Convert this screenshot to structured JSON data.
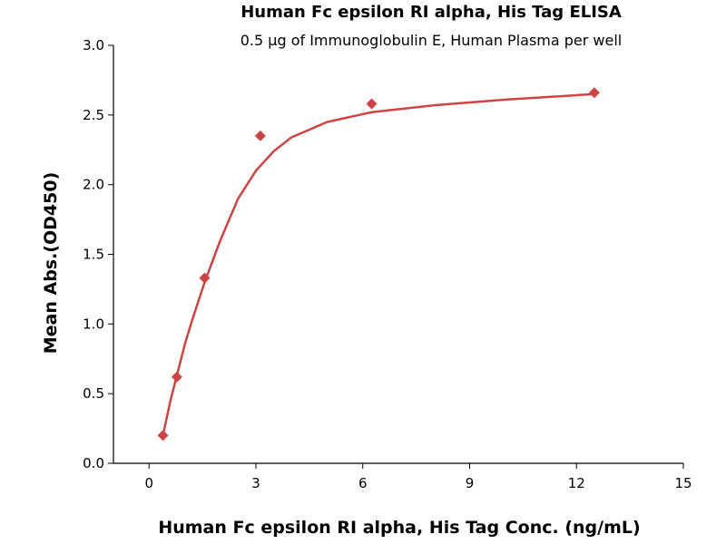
{
  "chart_data": {
    "type": "scatter",
    "title": "Human Fc epsilon RI alpha, His Tag ELISA",
    "subtitle": "0.5 µg of Immunoglobulin E, Human Plasma per well",
    "x_label": "Human Fc epsilon RI alpha, His Tag Conc. (ng/mL)",
    "y_label": "Mean Abs.(OD450)",
    "xlim": [
      -1,
      15
    ],
    "ylim": [
      0,
      3
    ],
    "xticks": [
      0,
      3,
      6,
      9,
      12,
      15
    ],
    "yticks": [
      {
        "value": 0,
        "label": "0.0"
      },
      {
        "value": 0.5,
        "label": "0.5"
      },
      {
        "value": 1,
        "label": "1.0"
      },
      {
        "value": 1.5,
        "label": "1.5"
      },
      {
        "value": 2,
        "label": "2.0"
      },
      {
        "value": 2.5,
        "label": "2.5"
      },
      {
        "value": 3,
        "label": "3.0"
      }
    ],
    "series": [
      {
        "style": "markers",
        "color": "#cc4444",
        "x": [
          0.39,
          0.78,
          1.56,
          3.125,
          6.25,
          12.5
        ],
        "values": [
          0.2,
          0.62,
          1.33,
          2.35,
          2.58,
          2.66
        ]
      },
      {
        "style": "line",
        "color": "#cc4444",
        "x": [
          0.39,
          0.6,
          0.8,
          1.0,
          1.2,
          1.56,
          2.0,
          2.5,
          3.0,
          3.5,
          4.0,
          5.0,
          6.25,
          8.0,
          10.0,
          12.5
        ],
        "values": [
          0.2,
          0.45,
          0.65,
          0.85,
          1.02,
          1.3,
          1.6,
          1.9,
          2.1,
          2.24,
          2.34,
          2.45,
          2.52,
          2.57,
          2.61,
          2.65
        ]
      }
    ]
  }
}
